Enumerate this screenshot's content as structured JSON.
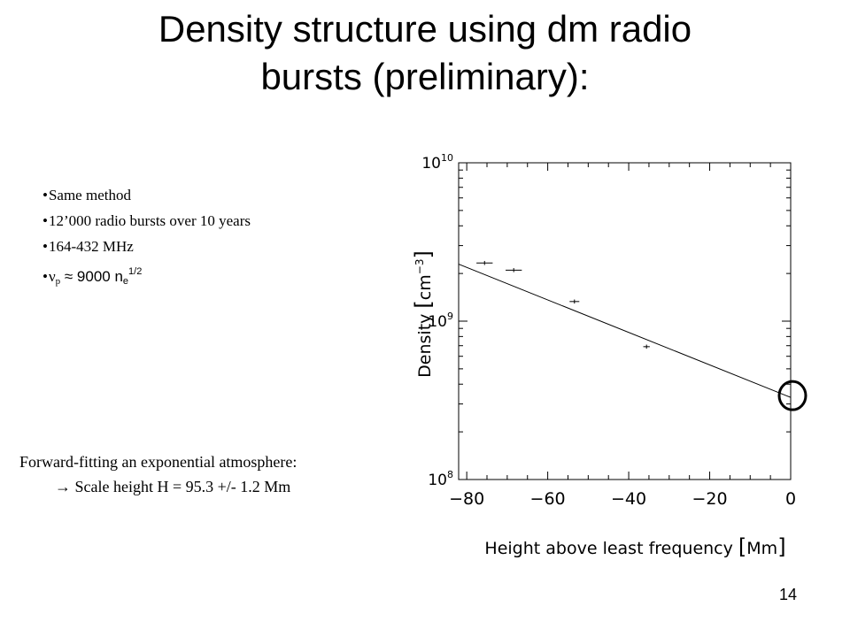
{
  "slide": {
    "title_line1": "Density structure using dm radio",
    "title_line2": "bursts (preliminary):",
    "bullets": {
      "b1": "Same method",
      "b2": "12’000 radio bursts over 10 years",
      "b3": "164-432 MHz",
      "b4_nu": "ν",
      "b4_nu_sub": "p",
      "b4_approx": " ≈ 9000 n",
      "b4_n_sub": "e",
      "b4_exp": "1/2"
    },
    "fit_text": {
      "line1": "Forward-fitting an exponential atmosphere:",
      "arrow": "→",
      "line2": " Scale height H = 95.3 +/- 1.2 Mm"
    },
    "page_number": "14"
  },
  "chart_data": {
    "type": "scatter",
    "x_scale": "linear",
    "y_scale": "log",
    "xlim": [
      -82,
      0
    ],
    "ylim": [
      100000000,
      10000000000
    ],
    "xlabel_main": "Height above least frequency",
    "xlabel_unit": "Mm",
    "ylabel_main": "Density",
    "ylabel_unit": "cm",
    "ylabel_unit_exp": "−3",
    "x_ticks": [
      {
        "value": -80,
        "label": "−80"
      },
      {
        "value": -60,
        "label": "−60"
      },
      {
        "value": -40,
        "label": "−40"
      },
      {
        "value": -20,
        "label": "−20"
      },
      {
        "value": 0,
        "label": "0"
      }
    ],
    "y_ticks": [
      {
        "value": 100000000,
        "base": "10",
        "exp": "8"
      },
      {
        "value": 1000000000,
        "base": "10",
        "exp": "9"
      },
      {
        "value": 10000000000,
        "base": "10",
        "exp": "10"
      }
    ],
    "points": [
      {
        "x": -75.6,
        "y": 2330000000,
        "xerr": 2.0,
        "yerr_factor": 1.03
      },
      {
        "x": -68.4,
        "y": 2100000000,
        "xerr": 2.0,
        "yerr_factor": 1.03
      },
      {
        "x": -53.4,
        "y": 1330000000,
        "xerr": 1.2,
        "yerr_factor": 1.03
      },
      {
        "x": -35.6,
        "y": 690000000,
        "xerr": 0.8,
        "yerr_factor": 1.03
      }
    ],
    "fit_line": {
      "x": [
        -82,
        0
      ],
      "y": [
        2290000000,
        330000000
      ]
    },
    "highlight_circle": {
      "x": 0,
      "y": 330000000
    },
    "grid": false,
    "legend": "none"
  }
}
